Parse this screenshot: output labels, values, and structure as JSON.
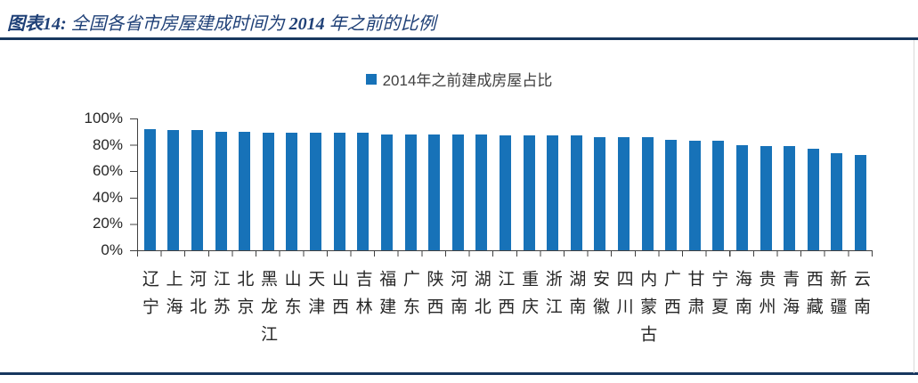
{
  "figure": {
    "title": {
      "prefix": "图表14:",
      "body": " 全国各省市房屋建成时间为 ",
      "year": "2014",
      "suffix": " 年之前的比例"
    },
    "title_color": "#1F4077",
    "accent_color": "#17375E"
  },
  "legend": {
    "label": "2014年之前建成房屋占比",
    "marker_color": "#1772B8"
  },
  "chart_data": {
    "type": "bar",
    "title": "2014年之前建成房屋占比",
    "categories": [
      "辽宁",
      "上海",
      "河北",
      "江苏",
      "北京",
      "黑龙江",
      "山东",
      "天津",
      "山西",
      "吉林",
      "福建",
      "广东",
      "陕西",
      "河南",
      "湖北",
      "江西",
      "重庆",
      "浙江",
      "湖南",
      "安徽",
      "四川",
      "内蒙古",
      "广西",
      "甘肃",
      "宁夏",
      "海南",
      "贵州",
      "青海",
      "西藏",
      "新疆",
      "云南"
    ],
    "values": [
      92,
      91,
      91,
      90,
      90,
      89,
      89,
      89,
      89,
      89,
      88,
      88,
      88,
      88,
      88,
      87,
      87,
      87,
      87,
      86,
      86,
      86,
      84,
      83,
      83,
      80,
      79,
      79,
      77,
      74,
      72
    ],
    "unit": "%",
    "xlabel": "",
    "ylabel": "",
    "ylim": [
      0,
      100
    ],
    "y_ticks": [
      "100%",
      "80%",
      "60%",
      "40%",
      "20%",
      "0%"
    ],
    "grid": false,
    "legend_position": "top-center",
    "bar_color": "#1772B8"
  }
}
